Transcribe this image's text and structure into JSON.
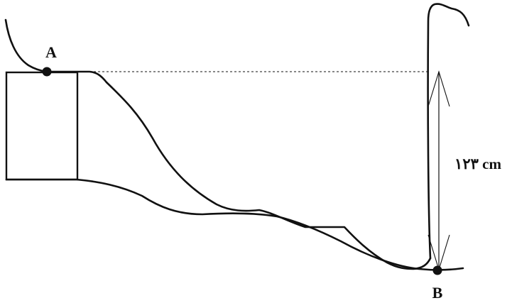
{
  "points": {
    "a_label": "A",
    "b_label": "B"
  },
  "measurement": {
    "height_label": "۱۲۳ cm"
  },
  "colors": {
    "ink": "#111111",
    "background": "#ffffff"
  }
}
